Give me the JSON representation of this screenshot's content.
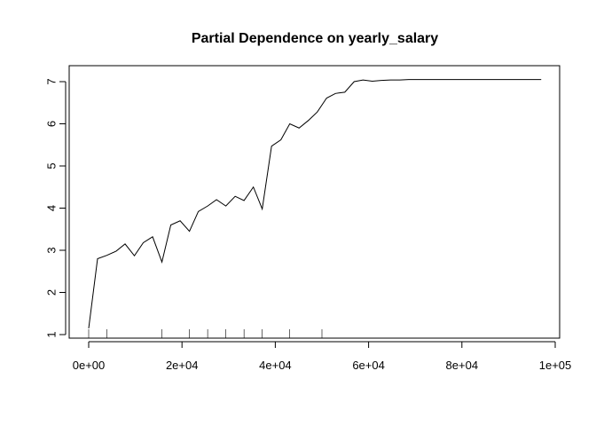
{
  "chart_data": {
    "type": "line",
    "title": "Partial Dependence on yearly_salary",
    "xlabel": "",
    "ylabel": "",
    "xlim": [
      0,
      100000
    ],
    "ylim": [
      1,
      7
    ],
    "x_ticks": [
      0,
      20000,
      40000,
      60000,
      80000,
      100000
    ],
    "x_tick_labels": [
      "0e+00",
      "2e+04",
      "4e+04",
      "6e+04",
      "8e+04",
      "1e+05"
    ],
    "y_ticks": [
      1,
      2,
      3,
      4,
      5,
      6,
      7
    ],
    "y_tick_labels": [
      "1",
      "2",
      "3",
      "4",
      "5",
      "6",
      "7"
    ],
    "grid": false,
    "series": [
      {
        "x": [
          0,
          1900,
          3900,
          5900,
          7800,
          9800,
          11700,
          13700,
          15700,
          17600,
          19600,
          21600,
          23500,
          25500,
          27400,
          29400,
          31400,
          33300,
          35300,
          37200,
          39200,
          41200,
          43100,
          45100,
          47100,
          49000,
          51000,
          52900,
          54900,
          56900,
          58800,
          60800,
          62700,
          64700,
          66700,
          68600,
          70600,
          97000
        ],
        "y": [
          1.15,
          2.8,
          2.88,
          2.98,
          3.15,
          2.87,
          3.18,
          3.32,
          2.72,
          3.6,
          3.7,
          3.45,
          3.92,
          4.05,
          4.2,
          4.05,
          4.28,
          4.18,
          4.5,
          3.98,
          5.47,
          5.62,
          6.0,
          5.9,
          6.08,
          6.28,
          6.61,
          6.72,
          6.75,
          7.0,
          7.04,
          7.01,
          7.03,
          7.04,
          7.04,
          7.05,
          7.05,
          7.05
        ]
      }
    ],
    "rug": [
      0,
      3900,
      15700,
      21600,
      25500,
      29400,
      33300,
      37200,
      43100,
      50000
    ]
  }
}
